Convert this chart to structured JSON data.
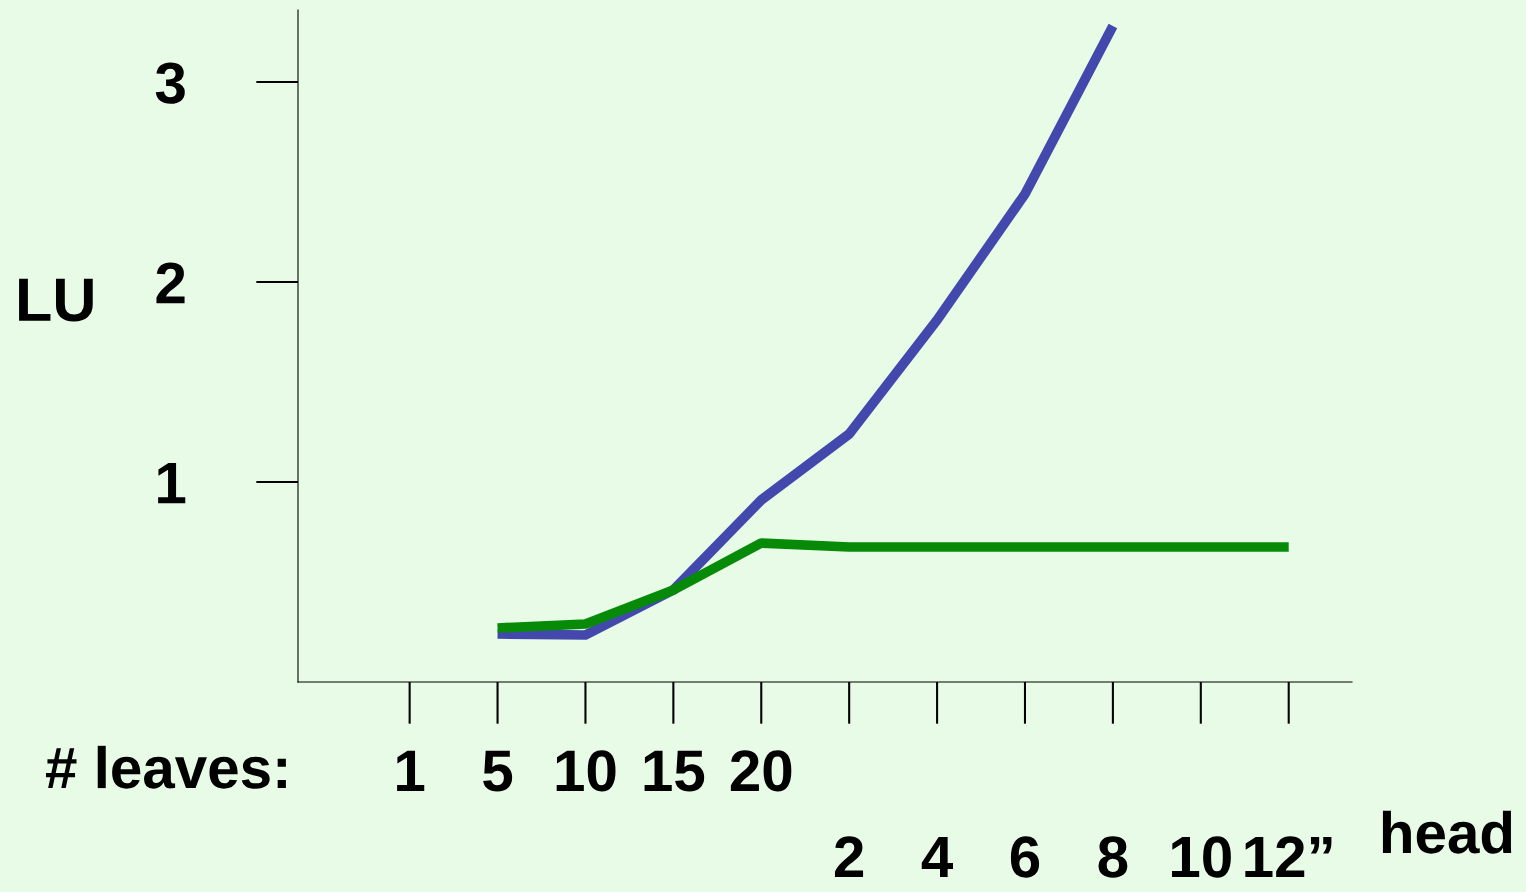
{
  "chart_data": {
    "type": "line",
    "ylabel": "LU",
    "annotations": [
      "# leaves:",
      "head"
    ],
    "categories": [
      "1",
      "5",
      "10",
      "15",
      "20",
      "2",
      "4",
      "6",
      "8",
      "10",
      "12”"
    ],
    "ylim": [
      0,
      3.36
    ],
    "yticks": [
      1,
      2,
      3
    ],
    "grid": false,
    "legend": false,
    "marker": "none",
    "line_style": "solid",
    "series": [
      {
        "color": "#4349ac",
        "values": [
          null,
          0.24,
          0.235,
          0.46,
          0.91,
          1.24,
          1.81,
          2.44,
          3.28,
          null,
          null
        ]
      },
      {
        "color": "#078a07",
        "values": [
          null,
          0.27,
          0.29,
          0.46,
          0.695,
          0.675,
          0.675,
          0.675,
          0.675,
          0.675,
          0.675
        ]
      }
    ]
  }
}
